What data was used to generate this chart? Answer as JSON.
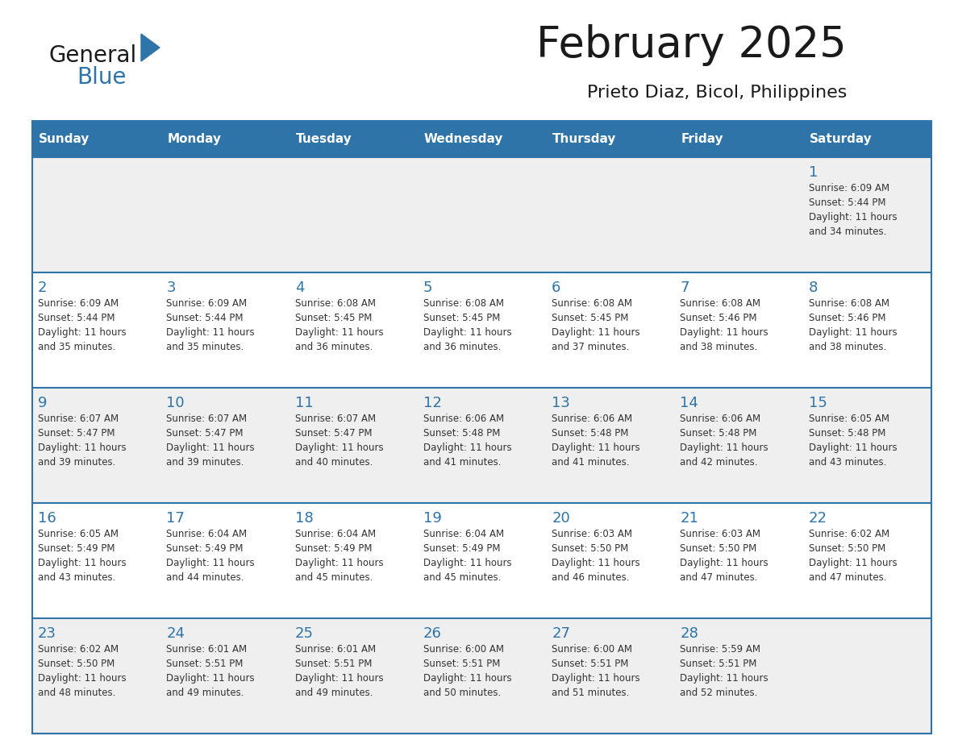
{
  "title": "February 2025",
  "subtitle": "Prieto Diaz, Bicol, Philippines",
  "days_of_week": [
    "Sunday",
    "Monday",
    "Tuesday",
    "Wednesday",
    "Thursday",
    "Friday",
    "Saturday"
  ],
  "header_bg": "#2E74A8",
  "header_text": "#FFFFFF",
  "cell_border": "#2E74A8",
  "day_num_color": "#2E74A8",
  "text_color": "#333333",
  "row_bg_odd": "#EFEFEF",
  "row_bg_even": "#FFFFFF",
  "calendar_data": [
    [
      null,
      null,
      null,
      null,
      null,
      null,
      {
        "day": "1",
        "sunrise": "6:09 AM",
        "sunset": "5:44 PM",
        "daylight": "11 hours",
        "daylight2": "and 34 minutes."
      }
    ],
    [
      {
        "day": "2",
        "sunrise": "6:09 AM",
        "sunset": "5:44 PM",
        "daylight": "11 hours",
        "daylight2": "and 35 minutes."
      },
      {
        "day": "3",
        "sunrise": "6:09 AM",
        "sunset": "5:44 PM",
        "daylight": "11 hours",
        "daylight2": "and 35 minutes."
      },
      {
        "day": "4",
        "sunrise": "6:08 AM",
        "sunset": "5:45 PM",
        "daylight": "11 hours",
        "daylight2": "and 36 minutes."
      },
      {
        "day": "5",
        "sunrise": "6:08 AM",
        "sunset": "5:45 PM",
        "daylight": "11 hours",
        "daylight2": "and 36 minutes."
      },
      {
        "day": "6",
        "sunrise": "6:08 AM",
        "sunset": "5:45 PM",
        "daylight": "11 hours",
        "daylight2": "and 37 minutes."
      },
      {
        "day": "7",
        "sunrise": "6:08 AM",
        "sunset": "5:46 PM",
        "daylight": "11 hours",
        "daylight2": "and 38 minutes."
      },
      {
        "day": "8",
        "sunrise": "6:08 AM",
        "sunset": "5:46 PM",
        "daylight": "11 hours",
        "daylight2": "and 38 minutes."
      }
    ],
    [
      {
        "day": "9",
        "sunrise": "6:07 AM",
        "sunset": "5:47 PM",
        "daylight": "11 hours",
        "daylight2": "and 39 minutes."
      },
      {
        "day": "10",
        "sunrise": "6:07 AM",
        "sunset": "5:47 PM",
        "daylight": "11 hours",
        "daylight2": "and 39 minutes."
      },
      {
        "day": "11",
        "sunrise": "6:07 AM",
        "sunset": "5:47 PM",
        "daylight": "11 hours",
        "daylight2": "and 40 minutes."
      },
      {
        "day": "12",
        "sunrise": "6:06 AM",
        "sunset": "5:48 PM",
        "daylight": "11 hours",
        "daylight2": "and 41 minutes."
      },
      {
        "day": "13",
        "sunrise": "6:06 AM",
        "sunset": "5:48 PM",
        "daylight": "11 hours",
        "daylight2": "and 41 minutes."
      },
      {
        "day": "14",
        "sunrise": "6:06 AM",
        "sunset": "5:48 PM",
        "daylight": "11 hours",
        "daylight2": "and 42 minutes."
      },
      {
        "day": "15",
        "sunrise": "6:05 AM",
        "sunset": "5:48 PM",
        "daylight": "11 hours",
        "daylight2": "and 43 minutes."
      }
    ],
    [
      {
        "day": "16",
        "sunrise": "6:05 AM",
        "sunset": "5:49 PM",
        "daylight": "11 hours",
        "daylight2": "and 43 minutes."
      },
      {
        "day": "17",
        "sunrise": "6:04 AM",
        "sunset": "5:49 PM",
        "daylight": "11 hours",
        "daylight2": "and 44 minutes."
      },
      {
        "day": "18",
        "sunrise": "6:04 AM",
        "sunset": "5:49 PM",
        "daylight": "11 hours",
        "daylight2": "and 45 minutes."
      },
      {
        "day": "19",
        "sunrise": "6:04 AM",
        "sunset": "5:49 PM",
        "daylight": "11 hours",
        "daylight2": "and 45 minutes."
      },
      {
        "day": "20",
        "sunrise": "6:03 AM",
        "sunset": "5:50 PM",
        "daylight": "11 hours",
        "daylight2": "and 46 minutes."
      },
      {
        "day": "21",
        "sunrise": "6:03 AM",
        "sunset": "5:50 PM",
        "daylight": "11 hours",
        "daylight2": "and 47 minutes."
      },
      {
        "day": "22",
        "sunrise": "6:02 AM",
        "sunset": "5:50 PM",
        "daylight": "11 hours",
        "daylight2": "and 47 minutes."
      }
    ],
    [
      {
        "day": "23",
        "sunrise": "6:02 AM",
        "sunset": "5:50 PM",
        "daylight": "11 hours",
        "daylight2": "and 48 minutes."
      },
      {
        "day": "24",
        "sunrise": "6:01 AM",
        "sunset": "5:51 PM",
        "daylight": "11 hours",
        "daylight2": "and 49 minutes."
      },
      {
        "day": "25",
        "sunrise": "6:01 AM",
        "sunset": "5:51 PM",
        "daylight": "11 hours",
        "daylight2": "and 49 minutes."
      },
      {
        "day": "26",
        "sunrise": "6:00 AM",
        "sunset": "5:51 PM",
        "daylight": "11 hours",
        "daylight2": "and 50 minutes."
      },
      {
        "day": "27",
        "sunrise": "6:00 AM",
        "sunset": "5:51 PM",
        "daylight": "11 hours",
        "daylight2": "and 51 minutes."
      },
      {
        "day": "28",
        "sunrise": "5:59 AM",
        "sunset": "5:51 PM",
        "daylight": "11 hours",
        "daylight2": "and 52 minutes."
      },
      null
    ]
  ]
}
